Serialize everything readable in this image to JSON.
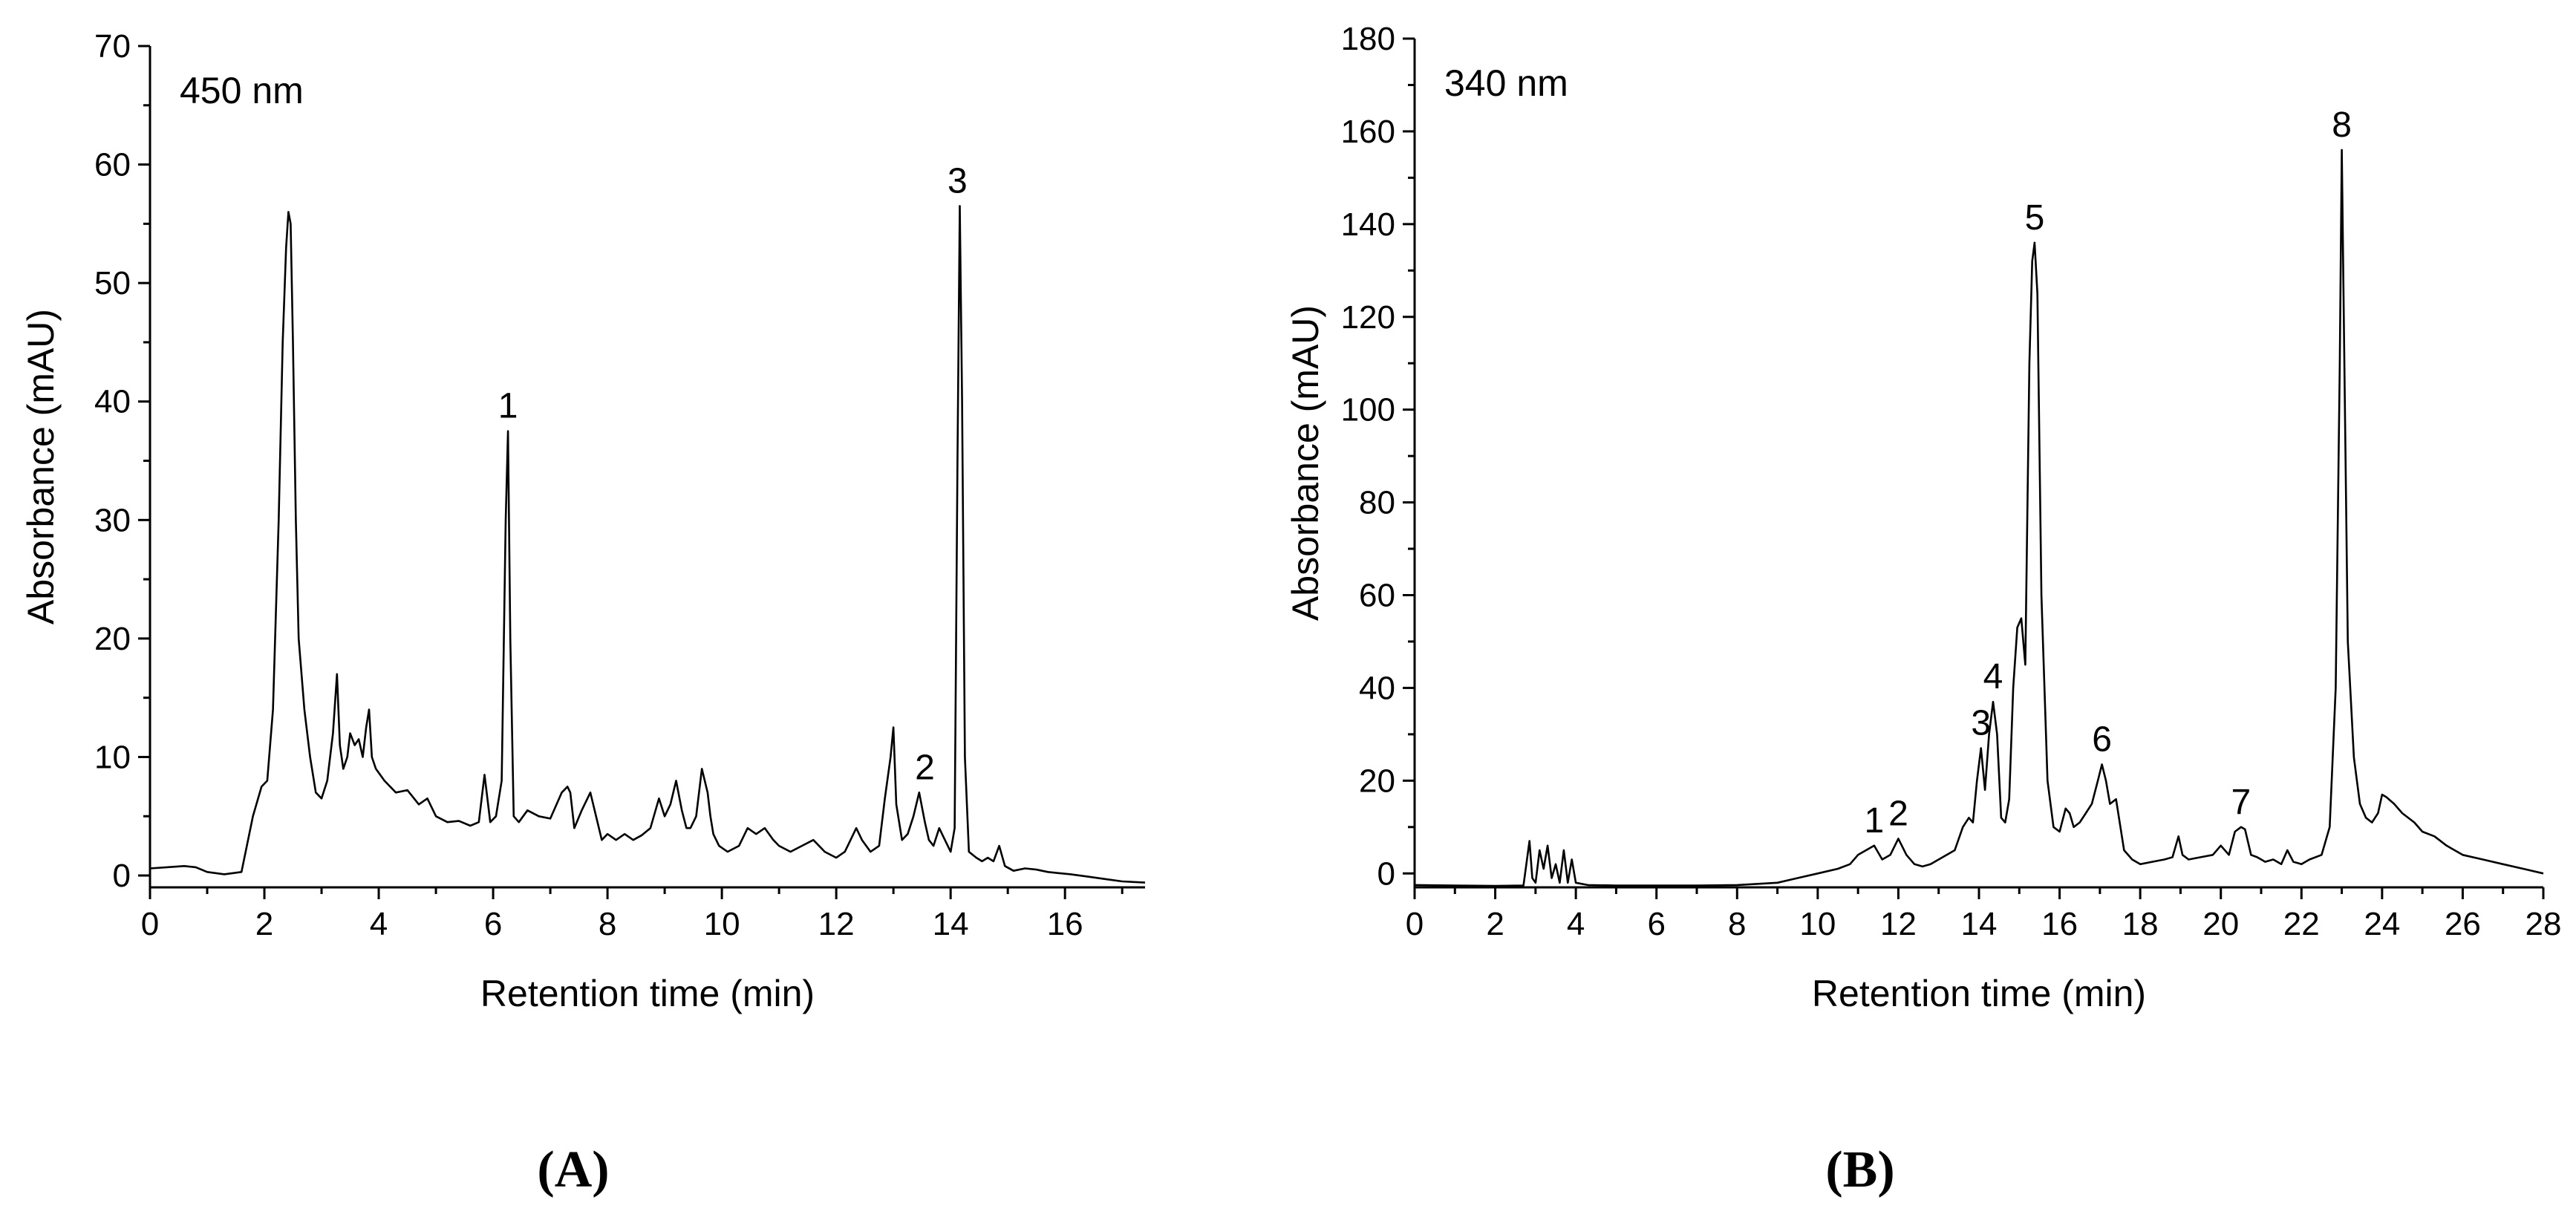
{
  "chart_data": [
    {
      "type": "line",
      "panel_label": "(A)",
      "annotation": "450 nm",
      "xlabel": "Retention time (min)",
      "ylabel": "Absorbance (mAU)",
      "xlim": [
        0,
        17.4
      ],
      "ylim": [
        -1,
        70
      ],
      "x_ticks": [
        0,
        2,
        4,
        6,
        8,
        10,
        12,
        14,
        16
      ],
      "y_ticks": [
        0,
        10,
        20,
        30,
        40,
        50,
        60,
        70
      ],
      "x_minor": 1,
      "y_minor": 5,
      "grid": false,
      "series": [
        {
          "x": [
            0,
            0.3,
            0.6,
            0.8,
            1.0,
            1.3,
            1.6,
            1.8,
            1.95,
            2.05,
            2.15,
            2.25,
            2.32,
            2.38,
            2.42,
            2.46,
            2.5,
            2.55,
            2.6,
            2.7,
            2.8,
            2.9,
            3.0,
            3.1,
            3.2,
            3.27,
            3.32,
            3.38,
            3.45,
            3.5,
            3.58,
            3.65,
            3.72,
            3.78,
            3.83,
            3.88,
            3.95,
            4.1,
            4.3,
            4.5,
            4.7,
            4.85,
            5.0,
            5.2,
            5.4,
            5.6,
            5.75,
            5.85,
            5.95,
            6.05,
            6.15,
            6.22,
            6.26,
            6.3,
            6.36,
            6.45,
            6.6,
            6.8,
            7.0,
            7.2,
            7.3,
            7.35,
            7.42,
            7.55,
            7.7,
            7.8,
            7.9,
            8.0,
            8.15,
            8.3,
            8.45,
            8.6,
            8.75,
            8.9,
            9.0,
            9.1,
            9.2,
            9.3,
            9.38,
            9.45,
            9.55,
            9.65,
            9.75,
            9.8,
            9.85,
            9.95,
            10.1,
            10.3,
            10.45,
            10.6,
            10.75,
            10.9,
            11.0,
            11.2,
            11.4,
            11.6,
            11.8,
            12.0,
            12.15,
            12.25,
            12.35,
            12.45,
            12.6,
            12.75,
            12.85,
            12.95,
            13.0,
            13.05,
            13.15,
            13.25,
            13.35,
            13.45,
            13.55,
            13.62,
            13.7,
            13.8,
            13.9,
            14.0,
            14.07,
            14.12,
            14.16,
            14.2,
            14.25,
            14.32,
            14.45,
            14.55,
            14.65,
            14.75,
            14.85,
            14.95,
            15.1,
            15.3,
            15.5,
            15.7,
            15.9,
            16.1,
            16.4,
            16.7,
            17.0,
            17.4
          ],
          "y": [
            0.6,
            0.7,
            0.8,
            0.7,
            0.3,
            0.1,
            0.3,
            5,
            7.5,
            8,
            14,
            30,
            45,
            53,
            56,
            55,
            45,
            30,
            20,
            14,
            10,
            7,
            6.5,
            8,
            12,
            17,
            11,
            9,
            10,
            12,
            11,
            11.5,
            10,
            12.5,
            14,
            10,
            9,
            8,
            7,
            7.2,
            6,
            6.5,
            5,
            4.5,
            4.6,
            4.2,
            4.5,
            8.5,
            4.5,
            5,
            8,
            30,
            37.5,
            20,
            5,
            4.5,
            5.5,
            5,
            4.8,
            7,
            7.5,
            7,
            4,
            5.5,
            7,
            5,
            3,
            3.5,
            3,
            3.5,
            3,
            3.4,
            4,
            6.5,
            5,
            6,
            8,
            5.5,
            4,
            4,
            5,
            9,
            7,
            5,
            3.5,
            2.5,
            2,
            2.5,
            4,
            3.5,
            4,
            3,
            2.5,
            2,
            2.5,
            3,
            2,
            1.5,
            2,
            3,
            4,
            3,
            2,
            2.5,
            6.5,
            10,
            12.5,
            6,
            3,
            3.5,
            5,
            7,
            4.5,
            3,
            2.5,
            4,
            3,
            2,
            4,
            35,
            56.5,
            40,
            10,
            2,
            1.5,
            1.2,
            1.5,
            1.2,
            2.5,
            0.8,
            0.4,
            0.6,
            0.5,
            0.3,
            0.2,
            0.1,
            -0.1,
            -0.3,
            -0.5,
            -0.6
          ]
        }
      ],
      "peak_labels": [
        {
          "text": "1",
          "x": 6.26,
          "y": 37.5
        },
        {
          "text": "2",
          "x": 13.55,
          "y": 7
        },
        {
          "text": "3",
          "x": 14.12,
          "y": 56.5
        }
      ]
    },
    {
      "type": "line",
      "panel_label": "(B)",
      "annotation": "340 nm",
      "xlabel": "Retention time (min)",
      "ylabel": "Absorbance (mAU)",
      "xlim": [
        0,
        28
      ],
      "ylim": [
        -3,
        180
      ],
      "x_ticks": [
        0,
        2,
        4,
        6,
        8,
        10,
        12,
        14,
        16,
        18,
        20,
        22,
        24,
        26,
        28
      ],
      "y_ticks": [
        0,
        20,
        40,
        60,
        80,
        100,
        120,
        140,
        160,
        180
      ],
      "x_minor": 1,
      "y_minor": 10,
      "grid": false,
      "series": [
        {
          "x": [
            0,
            1,
            2,
            2.7,
            2.85,
            2.92,
            3.0,
            3.1,
            3.2,
            3.3,
            3.4,
            3.5,
            3.6,
            3.7,
            3.8,
            3.9,
            4.0,
            4.3,
            5,
            6,
            7,
            8,
            9,
            9.5,
            10,
            10.5,
            10.8,
            11.0,
            11.2,
            11.4,
            11.6,
            11.8,
            12.0,
            12.2,
            12.4,
            12.6,
            12.8,
            13.0,
            13.2,
            13.4,
            13.6,
            13.75,
            13.85,
            13.95,
            14.05,
            14.15,
            14.25,
            14.35,
            14.45,
            14.55,
            14.65,
            14.75,
            14.85,
            14.95,
            15.05,
            15.15,
            15.25,
            15.32,
            15.38,
            15.45,
            15.55,
            15.7,
            15.85,
            16.0,
            16.15,
            16.25,
            16.35,
            16.5,
            16.65,
            16.8,
            16.95,
            17.05,
            17.15,
            17.25,
            17.4,
            17.6,
            17.8,
            18.0,
            18.3,
            18.6,
            18.8,
            18.95,
            19.05,
            19.2,
            19.5,
            19.8,
            20.0,
            20.2,
            20.35,
            20.5,
            20.6,
            20.75,
            20.9,
            21.1,
            21.3,
            21.5,
            21.65,
            21.8,
            22.0,
            22.2,
            22.5,
            22.7,
            22.85,
            22.95,
            23.0,
            23.05,
            23.15,
            23.3,
            23.45,
            23.6,
            23.75,
            23.9,
            24.0,
            24.1,
            24.3,
            24.5,
            24.8,
            25.0,
            25.3,
            25.6,
            26.0,
            26.5,
            27.0,
            27.5,
            28.0
          ],
          "y": [
            -2.5,
            -2.6,
            -2.7,
            -2.6,
            7,
            -1,
            -2,
            5,
            1,
            6,
            -1,
            2,
            -2,
            5,
            -2,
            3,
            -2,
            -2.5,
            -2.6,
            -2.6,
            -2.6,
            -2.5,
            -2,
            -1,
            0,
            1,
            2,
            4,
            5,
            6,
            3,
            4,
            7.5,
            4,
            2,
            1.5,
            2,
            3,
            4,
            5,
            10,
            12,
            11,
            20,
            27,
            18,
            30,
            37,
            30,
            12,
            11,
            16,
            40,
            53,
            55,
            45,
            110,
            132,
            136,
            125,
            60,
            20,
            10,
            9,
            14,
            13,
            10,
            11,
            13,
            15,
            20,
            23.5,
            20,
            15,
            16,
            5,
            3,
            2,
            2.5,
            3,
            3.5,
            8,
            4,
            3,
            3.5,
            4,
            6,
            4,
            9,
            10,
            9.5,
            4,
            3.5,
            2.5,
            3,
            2,
            5,
            2.5,
            2,
            3,
            4,
            10,
            40,
            110,
            156,
            120,
            50,
            25,
            15,
            12,
            11,
            13,
            17,
            16.5,
            15,
            13,
            11,
            9,
            8,
            6,
            4,
            3,
            2,
            1,
            0
          ]
        }
      ],
      "peak_labels": [
        {
          "text": "1",
          "x": 11.4,
          "y": 6
        },
        {
          "text": "2",
          "x": 12.0,
          "y": 7.5
        },
        {
          "text": "3",
          "x": 14.05,
          "y": 27
        },
        {
          "text": "4",
          "x": 14.35,
          "y": 37
        },
        {
          "text": "5",
          "x": 15.38,
          "y": 136
        },
        {
          "text": "6",
          "x": 17.05,
          "y": 23.5
        },
        {
          "text": "7",
          "x": 20.5,
          "y": 10
        },
        {
          "text": "8",
          "x": 23.0,
          "y": 156
        }
      ]
    }
  ]
}
